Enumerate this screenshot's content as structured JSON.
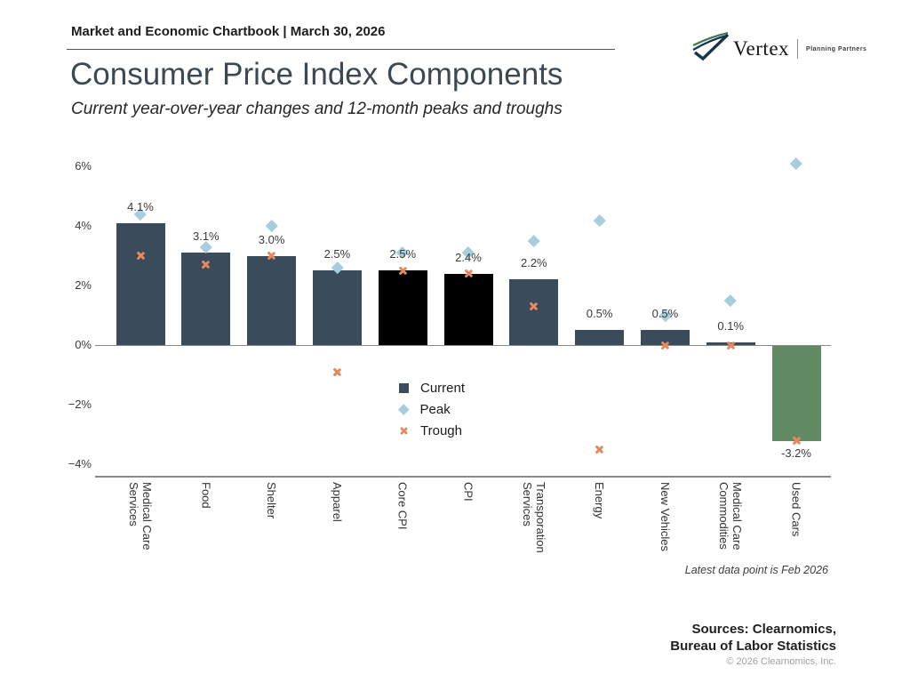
{
  "header": {
    "chartbook_title": "Market and Economic Chartbook | March 30, 2026"
  },
  "logo": {
    "brand": "Vertex",
    "tagline": "Planning Partners"
  },
  "page": {
    "title": "Consumer Price Index Components",
    "subtitle": "Current year-over-year changes and 12-month peaks and troughs"
  },
  "chart_data": {
    "type": "bar",
    "title": "Consumer Price Index Components",
    "categories": [
      "Medical Care\nServices",
      "Food",
      "Shelter",
      "Apparel",
      "Core CPI",
      "CPI",
      "Transporation\nServices",
      "Energy",
      "New Vehicles",
      "Medical Care\nCommodities",
      "Used Cars"
    ],
    "series": [
      {
        "name": "Current",
        "type": "bar",
        "values": [
          4.1,
          3.1,
          3.0,
          2.5,
          2.5,
          2.4,
          2.2,
          0.5,
          0.5,
          0.1,
          -3.2
        ],
        "labels": [
          "4.1%",
          "3.1%",
          "3.0%",
          "2.5%",
          "2.5%",
          "2.4%",
          "2.2%",
          "0.5%",
          "0.5%",
          "0.1%",
          "-3.2%"
        ],
        "colors": [
          "#3a4c5b",
          "#3a4c5b",
          "#3a4c5b",
          "#3a4c5b",
          "#000000",
          "#000000",
          "#3a4c5b",
          "#3a4c5b",
          "#3a4c5b",
          "#3a4c5b",
          "#5f8a63"
        ]
      },
      {
        "name": "Peak",
        "type": "scatter",
        "marker": "diamond",
        "color": "#a8cede",
        "values": [
          4.4,
          3.3,
          4.0,
          2.6,
          3.1,
          3.1,
          3.5,
          4.2,
          1.0,
          1.5,
          6.1
        ]
      },
      {
        "name": "Trough",
        "type": "scatter",
        "marker": "x",
        "color": "#e5885c",
        "values": [
          3.0,
          2.7,
          3.0,
          -0.9,
          2.5,
          2.4,
          1.3,
          -3.5,
          0.0,
          0.0,
          -3.2
        ]
      }
    ],
    "ylim": [
      -4.4,
      6.6
    ],
    "yticks": [
      {
        "value": 6,
        "label": "6%"
      },
      {
        "value": 4,
        "label": "4%"
      },
      {
        "value": 2,
        "label": "2%"
      },
      {
        "value": 0,
        "label": "0%"
      },
      {
        "value": -2,
        "label": "−2%"
      },
      {
        "value": -4,
        "label": "−4%"
      }
    ],
    "grid": false,
    "legend_position": "inside-center",
    "annotation": "Latest data point is Feb 2026"
  },
  "legend": {
    "items": [
      {
        "label": "Current",
        "marker": "square",
        "color": "#3a4c5b"
      },
      {
        "label": "Peak",
        "marker": "diamond",
        "color": "#a8cede"
      },
      {
        "label": "Trough",
        "marker": "x",
        "color": "#e5885c"
      }
    ]
  },
  "footer": {
    "sources_line1": "Sources: Clearnomics,",
    "sources_line2": "Bureau of Labor Statistics",
    "copyright": "© 2026 Clearnomics, Inc."
  }
}
